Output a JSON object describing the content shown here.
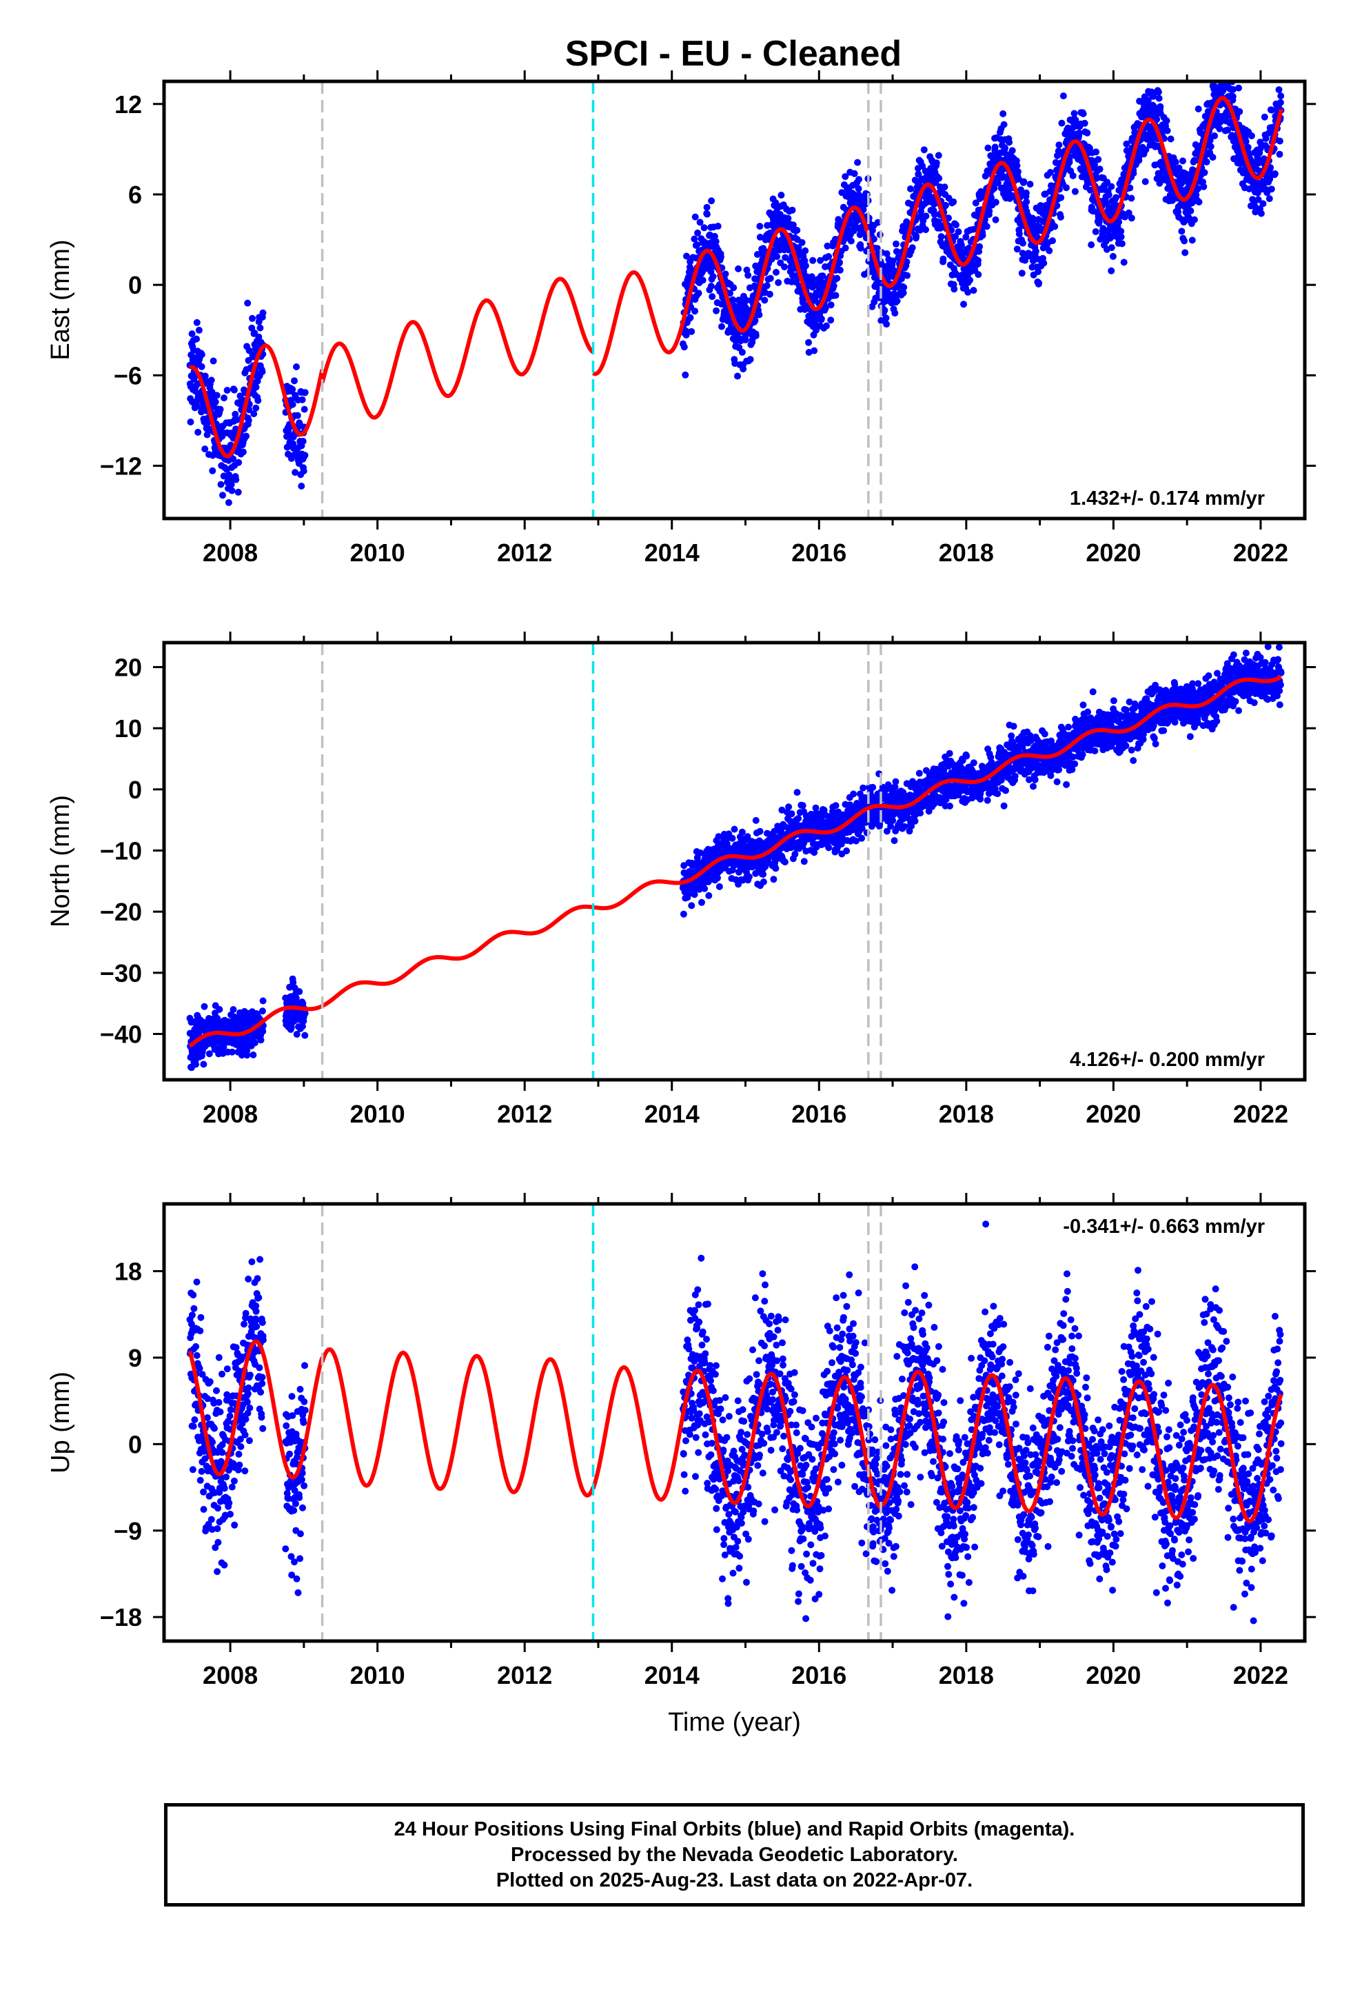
{
  "title": "SPCI  - EU - Cleaned",
  "colors": {
    "data_points": "#0000ff",
    "model_fit": "#ff0000",
    "antenna_change_line": "#c0c0c0",
    "equipment_change_line": "#00e5ee"
  },
  "footer": {
    "line1": "24 Hour Positions Using Final Orbits (blue) and Rapid Orbits (magenta).",
    "line2": "Processed by the Nevada Geodetic Laboratory.",
    "line3": "Plotted on 2025-Aug-23. Last data on 2022-Apr-07."
  },
  "chart_data": [
    {
      "type": "scatter",
      "ylabel": "East (mm)",
      "xlabel": "",
      "xlim": [
        2007.1,
        2022.6
      ],
      "ylim": [
        -15.5,
        13.5
      ],
      "xticks": [
        2008,
        2010,
        2012,
        2014,
        2016,
        2018,
        2020,
        2022
      ],
      "yticks": [
        -12,
        -6,
        0,
        6,
        12
      ],
      "yticks_labels": [
        "−12",
        "−6",
        "0",
        "6",
        "12"
      ],
      "rate_label": "1.432+/- 0.174 mm/yr",
      "rate_position": "bottom-right",
      "vertical_lines": [
        {
          "x": 2009.25,
          "kind": "antenna_change"
        },
        {
          "x": 2012.93,
          "kind": "equipment_change"
        },
        {
          "x": 2016.67,
          "kind": "antenna_change"
        },
        {
          "x": 2016.84,
          "kind": "antenna_change"
        }
      ],
      "model": {
        "segments": [
          {
            "start": 2007.45,
            "end": 2009.25,
            "offset": -8.8,
            "slope": 1.432,
            "amplitude": 3.3,
            "phase": 2007.47
          },
          {
            "start": 2009.25,
            "end": 2012.93,
            "offset": -9.6,
            "slope": 1.432,
            "amplitude": 2.8,
            "phase": 2007.47
          },
          {
            "start": 2012.93,
            "end": 2016.67,
            "offset": -10.8,
            "slope": 1.432,
            "amplitude": 3.0,
            "phase": 2007.47
          },
          {
            "start": 2016.67,
            "end": 2016.84,
            "offset": -10.9,
            "slope": 1.432,
            "amplitude": 3.0,
            "phase": 2007.47
          },
          {
            "start": 2016.84,
            "end": 2022.28,
            "offset": -10.7,
            "slope": 1.432,
            "amplitude": 3.0,
            "phase": 2007.47
          }
        ]
      },
      "data_spans": [
        [
          2007.45,
          2008.45,
          1.6
        ],
        [
          2008.75,
          2009.02,
          1.6
        ],
        [
          2014.15,
          2022.28,
          1.3
        ]
      ]
    },
    {
      "type": "scatter",
      "ylabel": "North (mm)",
      "xlabel": "",
      "xlim": [
        2007.1,
        2022.6
      ],
      "ylim": [
        -47.5,
        24
      ],
      "xticks": [
        2008,
        2010,
        2012,
        2014,
        2016,
        2018,
        2020,
        2022
      ],
      "yticks": [
        -40,
        -30,
        -20,
        -10,
        0,
        10,
        20
      ],
      "yticks_labels": [
        "−40",
        "−30",
        "−20",
        "−10",
        "0",
        "10",
        "20"
      ],
      "rate_label": "4.126+/- 0.200 mm/yr",
      "rate_position": "bottom-right",
      "vertical_lines": [
        {
          "x": 2009.25,
          "kind": "antenna_change"
        },
        {
          "x": 2012.93,
          "kind": "equipment_change"
        },
        {
          "x": 2016.67,
          "kind": "antenna_change"
        },
        {
          "x": 2016.84,
          "kind": "antenna_change"
        }
      ],
      "model": {
        "segments": [
          {
            "start": 2007.45,
            "end": 2022.28,
            "offset": -42.0,
            "slope": 4.126,
            "amplitude": 0.9,
            "phase": 2007.7
          }
        ]
      },
      "data_spans": [
        [
          2007.45,
          2008.45,
          1.8
        ],
        [
          2008.75,
          2009.02,
          1.8
        ],
        [
          2014.15,
          2022.28,
          1.8
        ]
      ]
    },
    {
      "type": "scatter",
      "ylabel": "Up (mm)",
      "xlabel": "Time (year)",
      "xlim": [
        2007.1,
        2022.6
      ],
      "ylim": [
        -20.5,
        25
      ],
      "xticks": [
        2008,
        2010,
        2012,
        2014,
        2016,
        2018,
        2020,
        2022
      ],
      "yticks": [
        -18,
        -9,
        0,
        9,
        18
      ],
      "yticks_labels": [
        "−18",
        "−9",
        "0",
        "9",
        "18"
      ],
      "rate_label": "-0.341+/- 0.663 mm/yr",
      "rate_position": "top-right",
      "vertical_lines": [
        {
          "x": 2009.25,
          "kind": "antenna_change"
        },
        {
          "x": 2012.93,
          "kind": "equipment_change"
        },
        {
          "x": 2016.67,
          "kind": "antenna_change"
        },
        {
          "x": 2016.84,
          "kind": "antenna_change"
        }
      ],
      "model": {
        "segments": [
          {
            "start": 2007.45,
            "end": 2009.25,
            "offset": 4.0,
            "slope": -0.341,
            "amplitude": 7.0,
            "phase": 2007.35
          },
          {
            "start": 2009.25,
            "end": 2012.93,
            "offset": 3.5,
            "slope": -0.341,
            "amplitude": 7.0,
            "phase": 2007.35
          },
          {
            "start": 2012.93,
            "end": 2016.67,
            "offset": 3.2,
            "slope": -0.341,
            "amplitude": 6.8,
            "phase": 2007.35
          },
          {
            "start": 2016.67,
            "end": 2016.84,
            "offset": 3.4,
            "slope": -0.341,
            "amplitude": 6.8,
            "phase": 2007.35
          },
          {
            "start": 2016.84,
            "end": 2022.28,
            "offset": 3.9,
            "slope": -0.341,
            "amplitude": 7.0,
            "phase": 2007.35
          }
        ]
      },
      "data_spans": [
        [
          2007.45,
          2008.45,
          4.5
        ],
        [
          2008.75,
          2009.02,
          4.5
        ],
        [
          2014.15,
          2022.28,
          4.5
        ]
      ]
    }
  ]
}
